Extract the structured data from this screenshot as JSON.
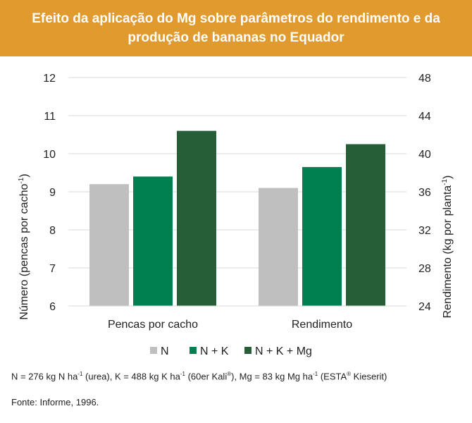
{
  "header": {
    "title_line1": "Efeito da aplicação do Mg sobre parâmetros do rendimento e da",
    "title_line2": "produção de bananas no Equador"
  },
  "chart_data": {
    "type": "bar",
    "categories": [
      "Pencas por cacho",
      "Rendimento"
    ],
    "series": [
      {
        "name": "N",
        "color": "#BFBFBF",
        "values": [
          9.2,
          36.4
        ]
      },
      {
        "name": "N + K",
        "color": "#008050",
        "values": [
          9.4,
          38.6
        ]
      },
      {
        "name": "N + K + Mg",
        "color": "#255E37",
        "values": [
          10.6,
          41.0
        ]
      }
    ],
    "axes": {
      "left": {
        "label": "Número (pencas por cacho",
        "label_sup": "-1",
        "label_end": ")",
        "ylim": [
          6,
          12
        ],
        "ticks": [
          "6",
          "7",
          "8",
          "9",
          "10",
          "11",
          "12"
        ]
      },
      "right": {
        "label": "Rendimento (kg por planta",
        "label_sup": "-1",
        "label_end": ")",
        "ylim": [
          24,
          48
        ],
        "ticks": [
          "24",
          "28",
          "32",
          "36",
          "40",
          "44",
          "48"
        ]
      }
    },
    "category_axis": [
      "left",
      "right"
    ],
    "grid": true,
    "legend_position": "bottom"
  },
  "footnote": {
    "p1": "N = 276 kg N ha",
    "s1": "-1",
    "p2": " (urea), K = 488 kg K ha",
    "s2": "-1",
    "p3": " (60er Kali",
    "s3": "®",
    "p4": "), Mg = 83 kg Mg ha",
    "s4": "-1",
    "p5": " (ESTA",
    "s5": "®",
    "p6": " Kieserit)"
  },
  "source": "Fonte: Informe, 1996."
}
